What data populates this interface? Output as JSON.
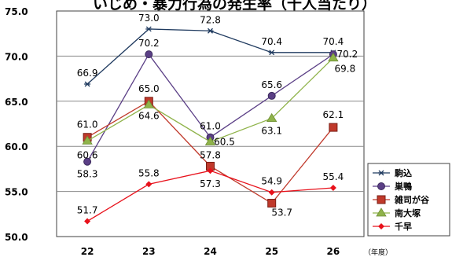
{
  "chart_data": {
    "type": "line",
    "title": "いじめ・暴力行為の発生率（千人当たり）",
    "xlabel": "（年度）",
    "ylabel": "",
    "categories": [
      "22",
      "23",
      "24",
      "25",
      "26"
    ],
    "ylim": [
      50.0,
      75.0
    ],
    "yticks": [
      "50.0",
      "55.0",
      "60.0",
      "65.0",
      "70.0",
      "75.0"
    ],
    "grid": "horizontal",
    "legend_position": "right",
    "series": [
      {
        "name": "駒込",
        "values": [
          66.9,
          73.0,
          72.8,
          70.4,
          70.4
        ],
        "labels": [
          "66.9",
          "73.0",
          "72.8",
          "70.4",
          "70.4"
        ],
        "color": "#1f3a5f",
        "marker": "asterisk"
      },
      {
        "name": "巣鴨",
        "values": [
          58.3,
          70.2,
          61.0,
          65.6,
          70.2
        ],
        "labels": [
          "58.3",
          "70.2",
          "61.0",
          "65.6",
          "70.2"
        ],
        "color": "#5b3f86",
        "marker": "circle"
      },
      {
        "name": "雑司が谷",
        "values": [
          61.0,
          65.0,
          57.8,
          53.7,
          62.1
        ],
        "labels": [
          "61.0",
          "65.0",
          "57.8",
          "53.7",
          "62.1"
        ],
        "color": "#c0392b",
        "marker": "square"
      },
      {
        "name": "南大塚",
        "values": [
          60.6,
          64.6,
          60.5,
          63.1,
          69.8
        ],
        "labels": [
          "60.6",
          "64.6",
          "60.5",
          "63.1",
          "69.8"
        ],
        "color": "#8fb34a",
        "marker": "triangle"
      },
      {
        "name": "千早",
        "values": [
          51.7,
          55.8,
          57.3,
          54.9,
          55.4
        ],
        "labels": [
          "51.7",
          "55.8",
          "57.3",
          "54.9",
          "55.4"
        ],
        "color": "#e8111b",
        "marker": "diamond"
      }
    ]
  }
}
